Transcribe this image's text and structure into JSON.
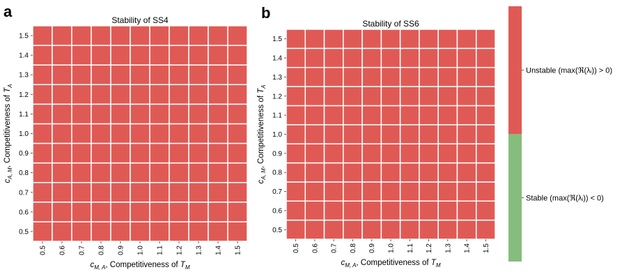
{
  "chart_data": [
    {
      "type": "heatmap",
      "panel": "a",
      "title": "Stability of SS4",
      "xlabel_sym": "c",
      "xlabel_sub": "M, A",
      "xlabel_text": ", Competitiveness of ",
      "xlabel_T": "T",
      "xlabel_Tsub": "M",
      "ylabel_sym": "c",
      "ylabel_sub": "A, M",
      "ylabel_text": ", Competitiveness of ",
      "ylabel_T": "T",
      "ylabel_Tsub": "A",
      "x": [
        "0.5",
        "0.6",
        "0.7",
        "0.8",
        "0.9",
        "1.0",
        "1.1",
        "1.2",
        "1.3",
        "1.4",
        "1.5"
      ],
      "y": [
        "0.5",
        "0.6",
        "0.7",
        "0.8",
        "0.9",
        "1.0",
        "1.1",
        "1.2",
        "1.3",
        "1.4",
        "1.5"
      ],
      "values": "all cells unstable",
      "stable": false
    },
    {
      "type": "heatmap",
      "panel": "b",
      "title": "Stability of SS6",
      "xlabel_sym": "c",
      "xlabel_sub": "M, A",
      "xlabel_text": ", Competitiveness of ",
      "xlabel_T": "T",
      "xlabel_Tsub": "M",
      "ylabel_sym": "c",
      "ylabel_sub": "A, M",
      "ylabel_text": ", Competitiveness of ",
      "ylabel_T": "T",
      "ylabel_Tsub": "A",
      "x": [
        "0.5",
        "0.6",
        "0.7",
        "0.8",
        "0.9",
        "1.0",
        "1.1",
        "1.2",
        "1.3",
        "1.4",
        "1.5"
      ],
      "y": [
        "0.5",
        "0.6",
        "0.7",
        "0.8",
        "0.9",
        "1.0",
        "1.1",
        "1.2",
        "1.3",
        "1.4",
        "1.5"
      ],
      "values": "all cells unstable",
      "stable": false
    }
  ],
  "legend": {
    "unstable_label": "Unstable (max(ℜ(λᵢ)) > 0)",
    "stable_label": "Stable (max(ℜ(λᵢ)) < 0)",
    "unstable_color": "#e05a55",
    "stable_color": "#85bd7c"
  },
  "colors": {
    "cell": "#e05a55",
    "gridline": "#ffffff"
  }
}
